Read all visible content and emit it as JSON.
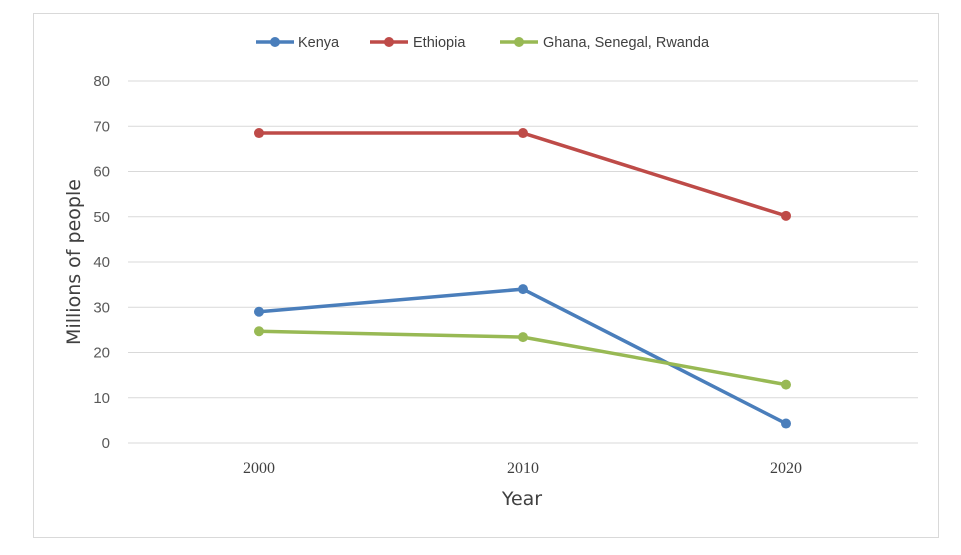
{
  "chart_data": {
    "type": "line",
    "title": "",
    "xlabel": "Year",
    "ylabel": "Millions of people",
    "categories": [
      "2000",
      "2010",
      "2020"
    ],
    "ylim": [
      0,
      80
    ],
    "yticks": [
      "0",
      "10",
      "20",
      "30",
      "40",
      "50",
      "60",
      "70",
      "80"
    ],
    "grid": true,
    "legend_position": "top",
    "series": [
      {
        "name": "Kenya",
        "values": [
          29,
          34,
          4.3
        ],
        "color": "#4a7ebb"
      },
      {
        "name": "Ethiopia",
        "values": [
          68.5,
          68.5,
          50.2
        ],
        "color": "#be4b48"
      },
      {
        "name": "Ghana, Senegal, Rwanda",
        "values": [
          24.7,
          23.4,
          12.9
        ],
        "color": "#98b954"
      }
    ]
  },
  "colors": {
    "grid": "#d9d9d9",
    "frame": "#d9d9d9"
  }
}
